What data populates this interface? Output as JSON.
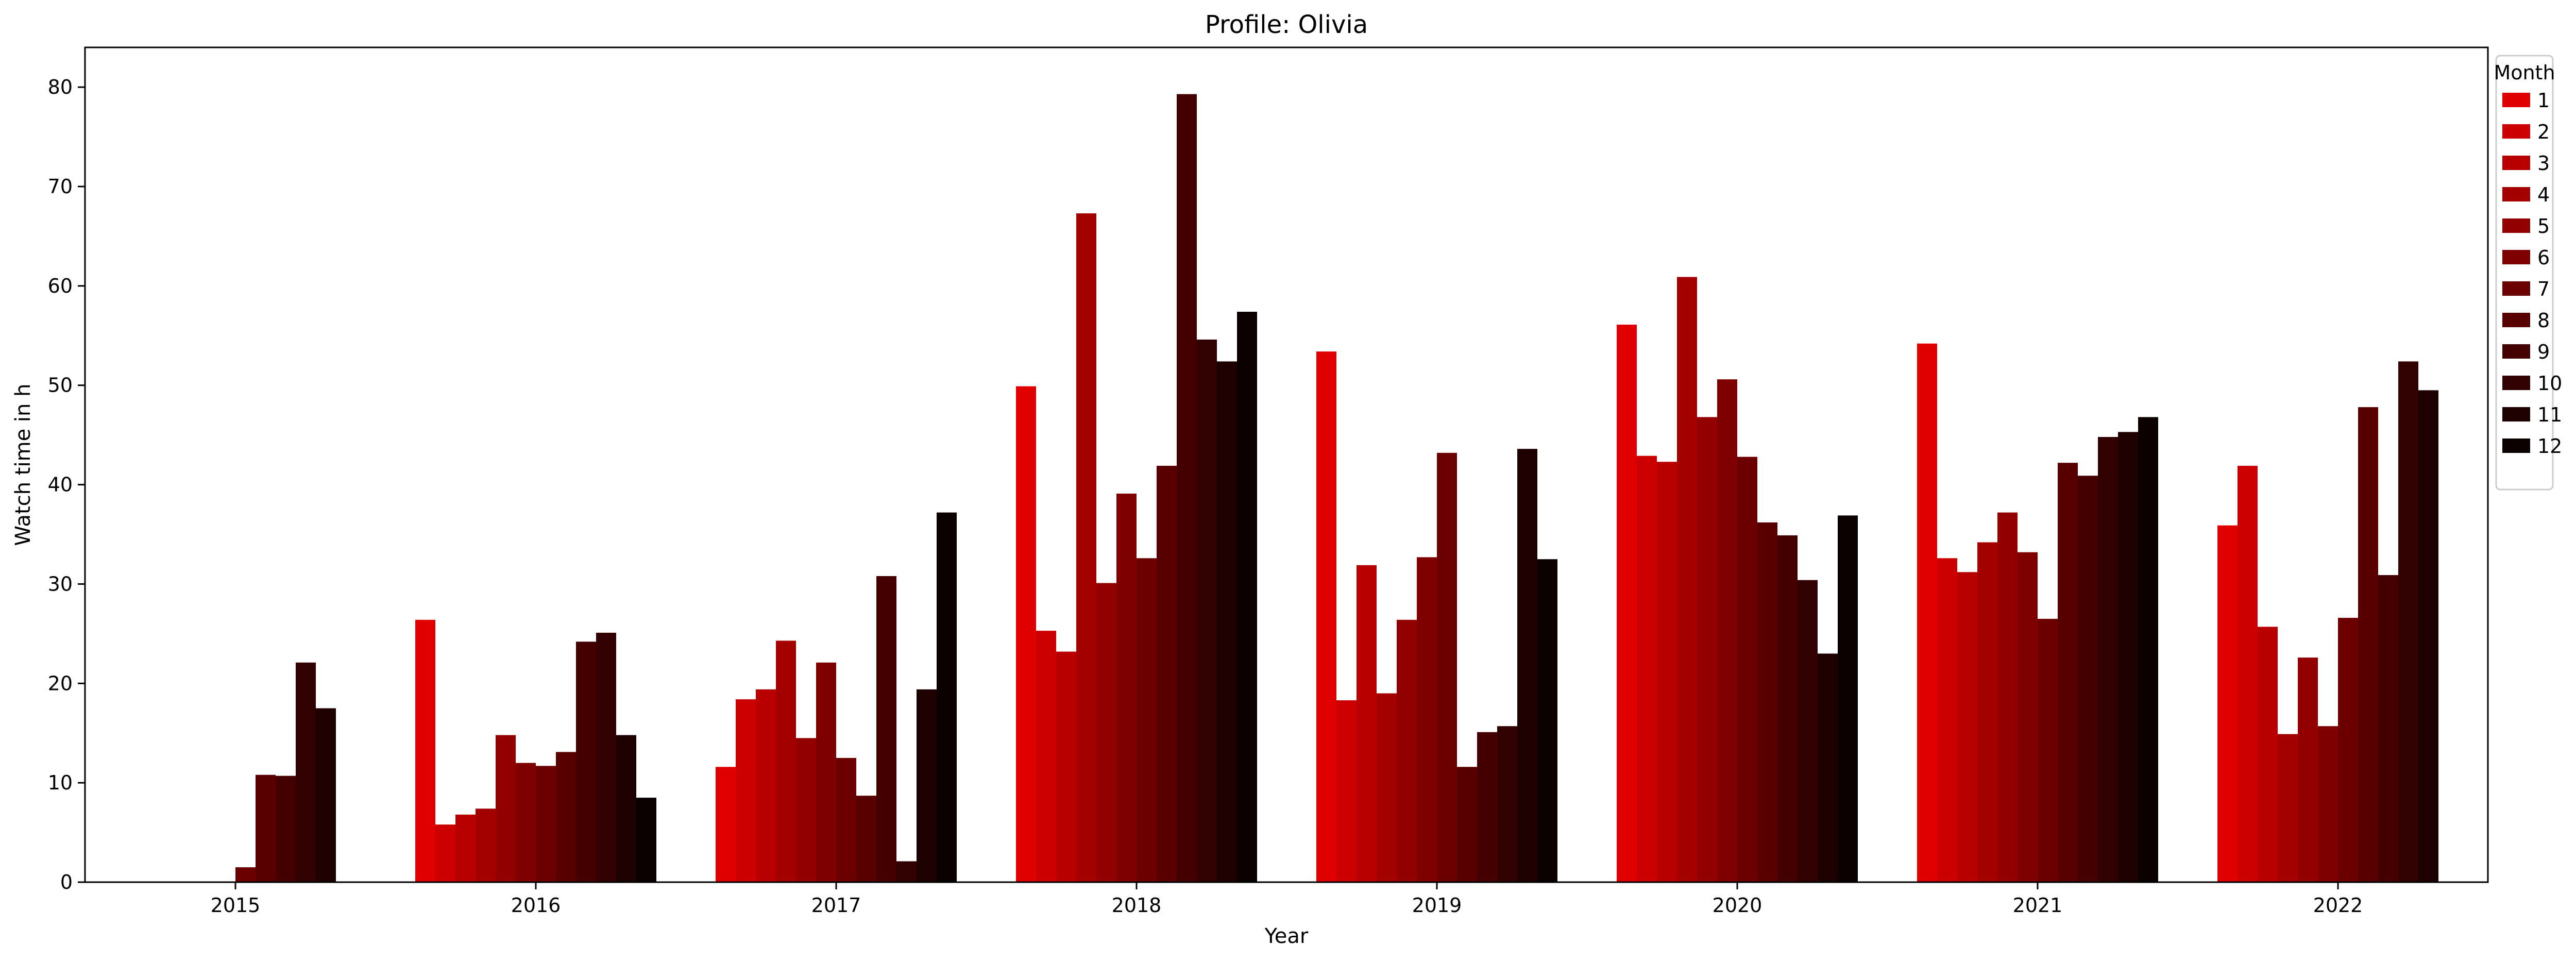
{
  "chart_data": {
    "type": "bar",
    "title": "Profile: Olivia",
    "xlabel": "Year",
    "ylabel": "Watch time in h",
    "ylim": [
      0,
      84
    ],
    "yticks": [
      0,
      10,
      20,
      30,
      40,
      50,
      60,
      70,
      80
    ],
    "categories": [
      "2015",
      "2016",
      "2017",
      "2018",
      "2019",
      "2020",
      "2021",
      "2022"
    ],
    "legend_title": "Month",
    "legend_position": "outside-top-right",
    "grid": false,
    "series": [
      {
        "name": "1",
        "color": "#e00000",
        "values": [
          0,
          26.4,
          11.6,
          49.9,
          53.4,
          56.1,
          54.2,
          35.9
        ]
      },
      {
        "name": "2",
        "color": "#cc0000",
        "values": [
          0,
          5.8,
          18.4,
          25.3,
          18.3,
          42.9,
          32.6,
          41.9
        ]
      },
      {
        "name": "3",
        "color": "#b90000",
        "values": [
          0,
          6.8,
          19.4,
          23.2,
          31.9,
          42.3,
          31.2,
          25.7
        ]
      },
      {
        "name": "4",
        "color": "#a50000",
        "values": [
          0,
          7.4,
          24.3,
          67.3,
          19.0,
          60.9,
          34.2,
          14.9
        ]
      },
      {
        "name": "5",
        "color": "#920000",
        "values": [
          0,
          14.8,
          14.5,
          30.1,
          26.4,
          46.8,
          37.2,
          22.6
        ]
      },
      {
        "name": "6",
        "color": "#7f0000",
        "values": [
          0,
          12.0,
          22.1,
          39.1,
          32.7,
          50.6,
          33.2,
          15.7
        ]
      },
      {
        "name": "7",
        "color": "#6b0000",
        "values": [
          1.5,
          11.7,
          12.5,
          32.6,
          43.2,
          42.8,
          26.5,
          26.6
        ]
      },
      {
        "name": "8",
        "color": "#580000",
        "values": [
          10.8,
          13.1,
          8.7,
          41.9,
          11.6,
          36.2,
          42.2,
          47.8
        ]
      },
      {
        "name": "9",
        "color": "#440000",
        "values": [
          10.7,
          24.2,
          30.8,
          79.3,
          15.1,
          34.9,
          40.9,
          30.9
        ]
      },
      {
        "name": "10",
        "color": "#310000",
        "values": [
          22.1,
          25.1,
          2.1,
          54.6,
          15.7,
          30.4,
          44.8,
          52.4
        ]
      },
      {
        "name": "11",
        "color": "#1d0000",
        "values": [
          17.5,
          14.8,
          19.4,
          52.4,
          43.6,
          23.0,
          45.3,
          49.5
        ]
      },
      {
        "name": "12",
        "color": "#0a0000",
        "values": [
          0,
          8.5,
          37.2,
          57.4,
          32.5,
          36.9,
          46.8,
          0
        ]
      }
    ]
  }
}
